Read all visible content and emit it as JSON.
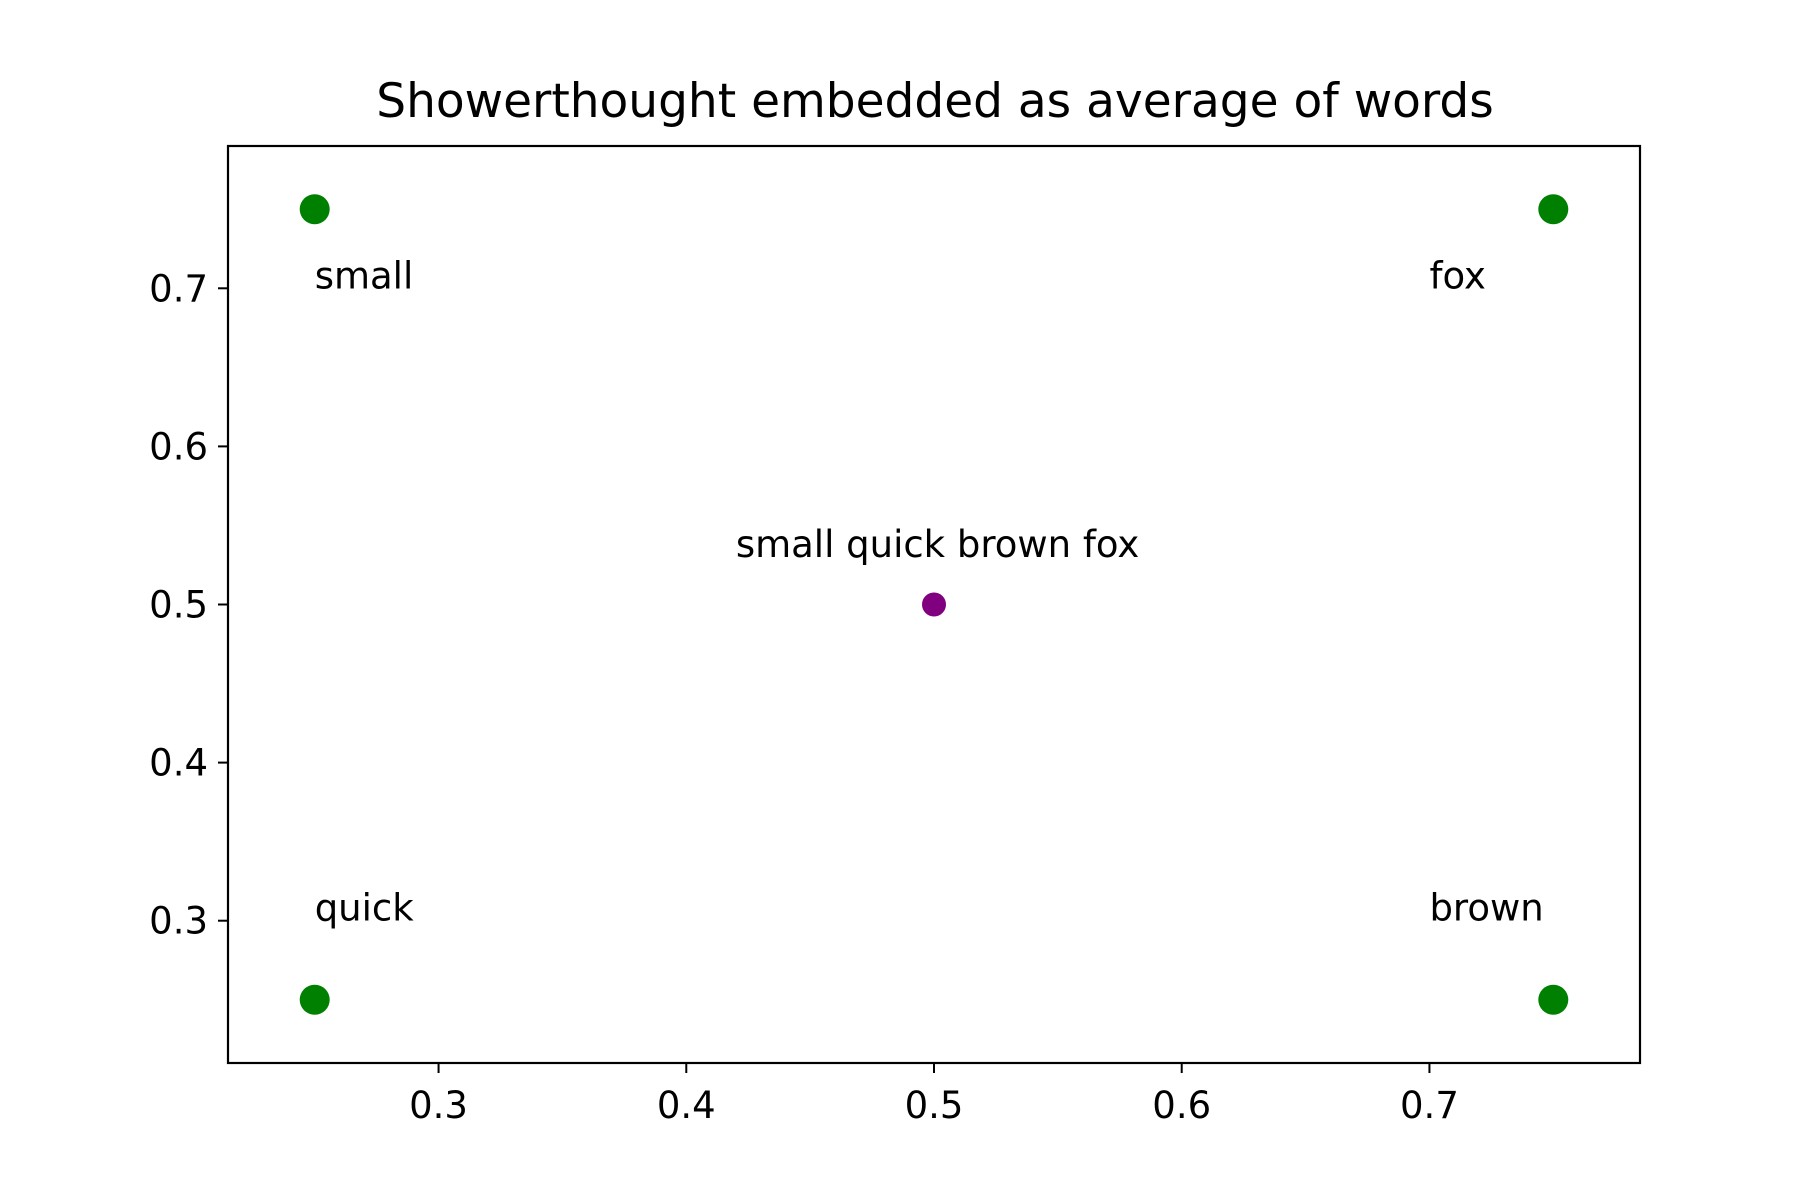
{
  "chart_data": {
    "type": "scatter",
    "title": "Showerthought embedded as average of words",
    "xlabel": "",
    "ylabel": "",
    "xlim": [
      0.215,
      0.785
    ],
    "ylim": [
      0.21,
      0.79
    ],
    "xticks": [
      0.3,
      0.4,
      0.5,
      0.6,
      0.7
    ],
    "yticks": [
      0.3,
      0.4,
      0.5,
      0.6,
      0.7
    ],
    "grid": false,
    "points": [
      {
        "x": 0.25,
        "y": 0.75,
        "label": "small",
        "color": "#008000",
        "label_x": 0.25,
        "label_y": 0.7
      },
      {
        "x": 0.75,
        "y": 0.75,
        "label": "fox",
        "color": "#008000",
        "label_x": 0.7,
        "label_y": 0.7
      },
      {
        "x": 0.25,
        "y": 0.25,
        "label": "quick",
        "color": "#008000",
        "label_x": 0.25,
        "label_y": 0.3
      },
      {
        "x": 0.75,
        "y": 0.25,
        "label": "brown",
        "color": "#008000",
        "label_x": 0.7,
        "label_y": 0.3
      },
      {
        "x": 0.5,
        "y": 0.5,
        "label": "small quick brown fox",
        "color": "#800080",
        "label_x": 0.42,
        "label_y": 0.53
      }
    ]
  }
}
